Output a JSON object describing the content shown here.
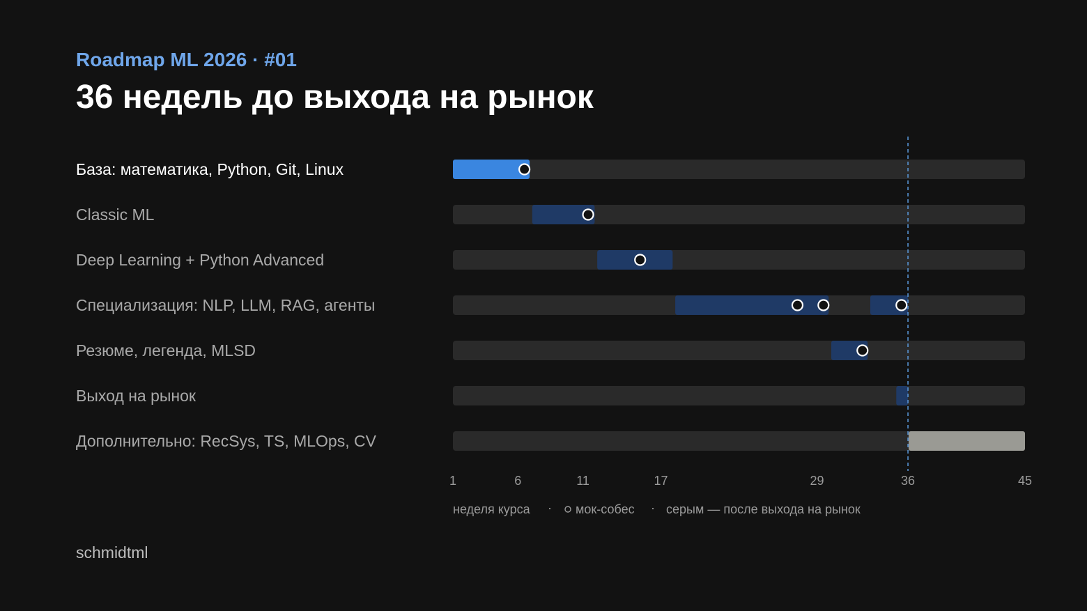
{
  "header": {
    "kicker": "Roadmap ML 2026 · #01",
    "title": "36 недель до выхода на рынок"
  },
  "footer": {
    "author": "schmidtml"
  },
  "colors": {
    "background": "#121212",
    "track": "#2a2a2a",
    "active_segment": "#3a86e0",
    "planned_segment": "#1f3a66",
    "post_market_segment": "#9a9a94",
    "market_line": "#5b9be0",
    "kicker": "#6fa6ea",
    "label_active": "#ffffff",
    "label_inactive": "#a9a9a9",
    "marker_fill": "#121212",
    "marker_stroke": "#ffffff"
  },
  "chart_data": {
    "type": "gantt",
    "x_range": [
      1,
      45
    ],
    "x_ticks": [
      1,
      6,
      11,
      17,
      29,
      36,
      45
    ],
    "x_tick_labels": [
      "1",
      "6",
      "11",
      "17",
      "29",
      "36",
      "45"
    ],
    "market_week": 36,
    "rows": [
      {
        "label": "База: математика, Python, Git, Linux",
        "active": true,
        "segments": [
          {
            "start": 1,
            "end": 6.9,
            "kind": "active"
          }
        ],
        "mock_interviews": [
          6.5
        ]
      },
      {
        "label": "Classic ML",
        "active": false,
        "segments": [
          {
            "start": 7.1,
            "end": 11.9,
            "kind": "planned"
          }
        ],
        "mock_interviews": [
          11.4
        ]
      },
      {
        "label": "Deep Learning + Python Advanced",
        "active": false,
        "segments": [
          {
            "start": 12.1,
            "end": 17.9,
            "kind": "planned"
          }
        ],
        "mock_interviews": [
          15.4
        ]
      },
      {
        "label": "Специализация: NLP, LLM, RAG, агенты",
        "active": false,
        "segments": [
          {
            "start": 18.1,
            "end": 29.9,
            "kind": "planned"
          },
          {
            "start": 33.1,
            "end": 36,
            "kind": "planned"
          }
        ],
        "mock_interviews": [
          27.5,
          29.5,
          35.5
        ]
      },
      {
        "label": "Резюме, легенда, MLSD",
        "active": false,
        "segments": [
          {
            "start": 30.1,
            "end": 32.9,
            "kind": "planned"
          }
        ],
        "mock_interviews": [
          32.5
        ]
      },
      {
        "label": "Выход на рынок",
        "active": false,
        "segments": [
          {
            "start": 35.1,
            "end": 36,
            "kind": "planned"
          }
        ],
        "mock_interviews": []
      },
      {
        "label": "Дополнительно: RecSys, TS, MLOps, CV",
        "active": false,
        "segments": [
          {
            "start": 36.05,
            "end": 45,
            "kind": "post"
          }
        ],
        "mock_interviews": []
      }
    ],
    "legend": {
      "x_caption": "неделя курса",
      "separator": "·",
      "mock_marker_label": "мок-собес",
      "post_label": "серым — после выхода на рынок"
    }
  }
}
